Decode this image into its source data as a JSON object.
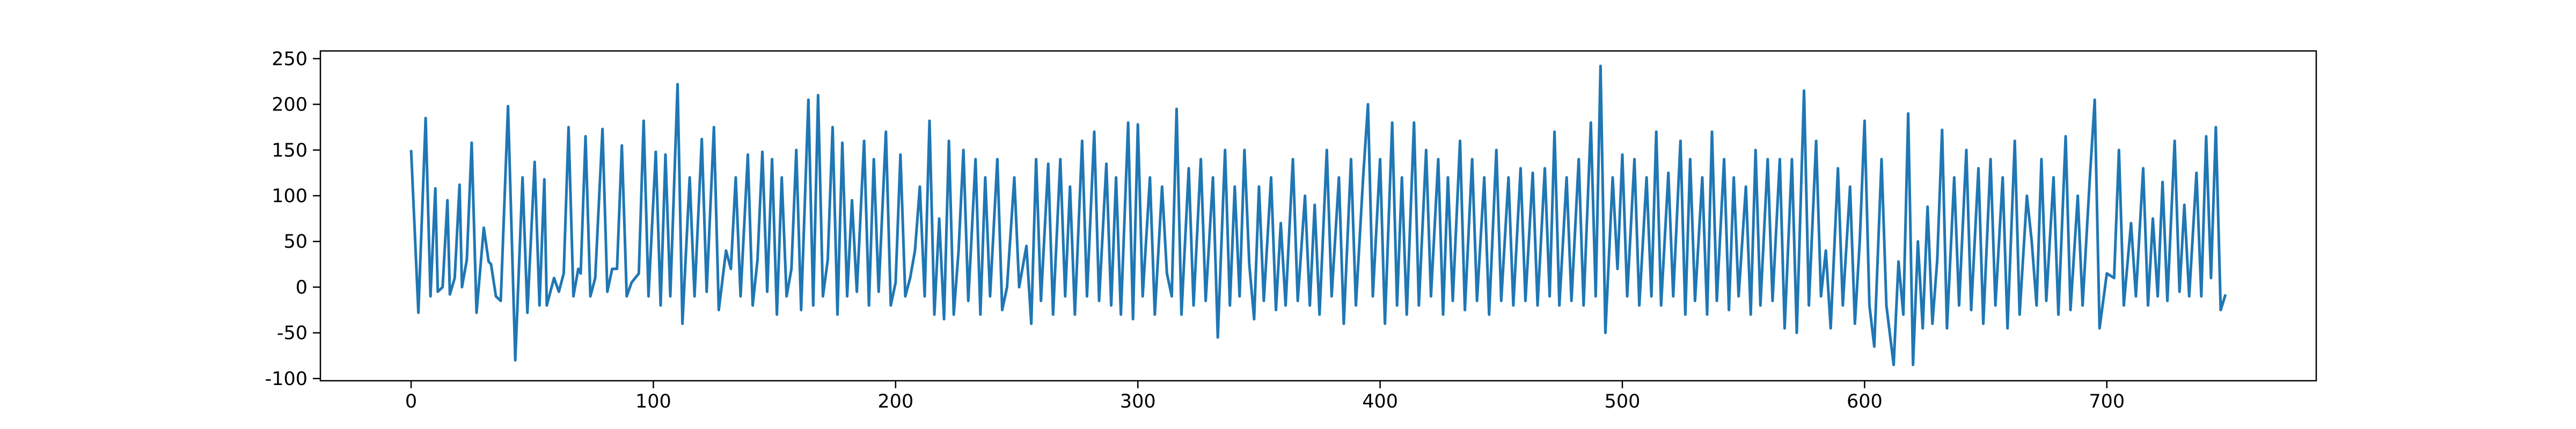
{
  "chart_data": {
    "type": "line",
    "color": "#1f77b4",
    "x": [
      0,
      3,
      6,
      8,
      10,
      11,
      13,
      15,
      16,
      18,
      20,
      21,
      23,
      25,
      27,
      30,
      32,
      33,
      35,
      37,
      40,
      43,
      46,
      48,
      51,
      53,
      55,
      56,
      59,
      61,
      63,
      65,
      67,
      69,
      70,
      72,
      74,
      76,
      79,
      81,
      83,
      85,
      87,
      89,
      91,
      94,
      96,
      98,
      101,
      103,
      105,
      107,
      110,
      112,
      115,
      117,
      120,
      122,
      125,
      127,
      130,
      132,
      134,
      136,
      139,
      141,
      143,
      145,
      147,
      149,
      151,
      153,
      155,
      157,
      159,
      161,
      164,
      166,
      168,
      170,
      172,
      174,
      176,
      178,
      180,
      182,
      184,
      187,
      189,
      191,
      193,
      196,
      198,
      200,
      202,
      204,
      206,
      208,
      210,
      212,
      214,
      216,
      218,
      220,
      222,
      224,
      226,
      228,
      230,
      233,
      235,
      237,
      239,
      242,
      244,
      246,
      249,
      251,
      254,
      256,
      258,
      260,
      263,
      265,
      268,
      270,
      272,
      274,
      277,
      279,
      282,
      284,
      287,
      289,
      291,
      293,
      296,
      298,
      300,
      302,
      305,
      307,
      310,
      312,
      314,
      316,
      318,
      321,
      323,
      326,
      328,
      331,
      333,
      336,
      338,
      340,
      342,
      344,
      346,
      348,
      350,
      352,
      355,
      357,
      359,
      361,
      364,
      366,
      369,
      371,
      373,
      375,
      378,
      380,
      383,
      385,
      388,
      390,
      393,
      395,
      397,
      400,
      402,
      405,
      407,
      409,
      411,
      414,
      416,
      419,
      421,
      424,
      426,
      428,
      430,
      433,
      435,
      438,
      440,
      443,
      445,
      448,
      450,
      453,
      455,
      458,
      460,
      463,
      465,
      468,
      470,
      472,
      474,
      477,
      479,
      482,
      484,
      487,
      489,
      491,
      493,
      496,
      498,
      500,
      502,
      505,
      507,
      510,
      512,
      514,
      516,
      519,
      521,
      524,
      526,
      528,
      530,
      533,
      535,
      537,
      539,
      542,
      544,
      546,
      548,
      551,
      553,
      555,
      557,
      560,
      562,
      565,
      567,
      570,
      572,
      575,
      577,
      580,
      582,
      584,
      586,
      589,
      591,
      594,
      596,
      598,
      600,
      602,
      604,
      607,
      609,
      612,
      614,
      616,
      618,
      620,
      622,
      624,
      626,
      628,
      630,
      632,
      634,
      637,
      639,
      642,
      644,
      647,
      649,
      652,
      654,
      657,
      659,
      662,
      664,
      667,
      669,
      671,
      673,
      675,
      678,
      680,
      683,
      685,
      688,
      690,
      693,
      695,
      697,
      700,
      703,
      705,
      707,
      710,
      712,
      715,
      717,
      719,
      721,
      723,
      725,
      728,
      730,
      732,
      734,
      737,
      739,
      741,
      743,
      745,
      747,
      749
    ],
    "values": [
      150,
      -28,
      185,
      -10,
      108,
      -5,
      0,
      95,
      -8,
      10,
      112,
      0,
      30,
      158,
      -28,
      65,
      28,
      25,
      -10,
      -15,
      198,
      -80,
      120,
      -28,
      137,
      -20,
      118,
      -20,
      10,
      -5,
      15,
      175,
      -10,
      20,
      15,
      165,
      -10,
      10,
      173,
      -5,
      20,
      20,
      155,
      -10,
      5,
      15,
      182,
      -10,
      148,
      -20,
      145,
      -10,
      222,
      -40,
      120,
      -10,
      162,
      -5,
      175,
      -25,
      40,
      20,
      120,
      -10,
      145,
      -20,
      30,
      148,
      -5,
      140,
      -30,
      120,
      -10,
      20,
      150,
      -25,
      205,
      -20,
      210,
      -10,
      30,
      175,
      -30,
      158,
      -10,
      95,
      -5,
      160,
      -20,
      140,
      -5,
      170,
      -20,
      5,
      145,
      -10,
      10,
      40,
      110,
      -10,
      182,
      -30,
      75,
      -35,
      160,
      -30,
      40,
      150,
      -15,
      140,
      -30,
      120,
      -10,
      140,
      -25,
      0,
      120,
      0,
      45,
      -40,
      140,
      -15,
      135,
      -30,
      140,
      -10,
      110,
      -30,
      160,
      -10,
      170,
      -15,
      135,
      -20,
      120,
      -30,
      180,
      -35,
      178,
      -10,
      120,
      -30,
      110,
      15,
      -10,
      195,
      -30,
      130,
      -20,
      140,
      -15,
      120,
      -55,
      150,
      -20,
      110,
      -10,
      150,
      25,
      -35,
      110,
      -15,
      120,
      -25,
      70,
      -20,
      140,
      -15,
      100,
      -20,
      90,
      -30,
      150,
      -10,
      120,
      -40,
      140,
      -20,
      120,
      200,
      -10,
      140,
      -40,
      180,
      -20,
      120,
      -30,
      180,
      -20,
      150,
      -10,
      140,
      -30,
      120,
      -15,
      160,
      -25,
      140,
      -15,
      120,
      -30,
      150,
      -15,
      120,
      -20,
      130,
      -15,
      125,
      -20,
      130,
      -10,
      170,
      -20,
      120,
      -15,
      140,
      -20,
      180,
      -10,
      242,
      -50,
      120,
      20,
      145,
      -10,
      140,
      -20,
      120,
      -10,
      170,
      -20,
      125,
      -10,
      160,
      -30,
      140,
      -15,
      120,
      -30,
      170,
      -15,
      140,
      -25,
      120,
      -10,
      110,
      -30,
      150,
      -20,
      140,
      -15,
      140,
      -45,
      140,
      -50,
      215,
      -20,
      160,
      -10,
      40,
      -45,
      130,
      -20,
      110,
      -40,
      50,
      182,
      -20,
      -65,
      140,
      -20,
      -85,
      28,
      -30,
      190,
      -85,
      50,
      -45,
      88,
      -40,
      30,
      172,
      -45,
      120,
      -20,
      150,
      -25,
      130,
      -40,
      140,
      -20,
      120,
      -45,
      160,
      -30,
      100,
      50,
      -20,
      140,
      -15,
      120,
      -30,
      165,
      -25,
      100,
      -20,
      120,
      205,
      -45,
      15,
      10,
      150,
      -20,
      70,
      -10,
      130,
      -20,
      75,
      -10,
      115,
      -15,
      160,
      -5,
      90,
      -10,
      125,
      -10,
      165,
      10,
      175,
      -25,
      -8
    ],
    "xlim": [
      -37.45,
      786.45
    ],
    "ylim": [
      -102.4,
      258.4
    ],
    "xticks": [
      0,
      100,
      200,
      300,
      400,
      500,
      600,
      700
    ],
    "yticks": [
      -100,
      -50,
      0,
      50,
      100,
      150,
      200,
      250
    ]
  }
}
